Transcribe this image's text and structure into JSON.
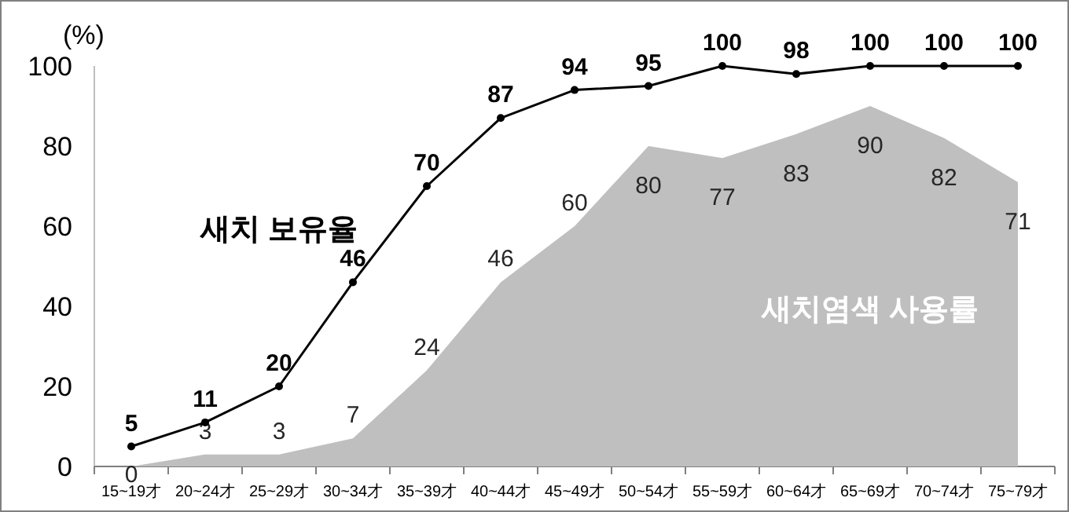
{
  "chart_data": {
    "type": "line",
    "ylabel": "(%)",
    "categories": [
      "15~19才",
      "20~24才",
      "25~29才",
      "30~34才",
      "35~39才",
      "40~44才",
      "45~49才",
      "50~54才",
      "55~59才",
      "60~64才",
      "65~69才",
      "70~74才",
      "75~79才"
    ],
    "series": [
      {
        "name": "새치염색 사용률",
        "type": "area",
        "color": "#bfbfbf",
        "values": [
          0,
          3,
          3,
          7,
          24,
          46,
          60,
          80,
          77,
          83,
          90,
          82,
          71
        ]
      },
      {
        "name": "새치 보유율",
        "color": "#000000",
        "marker": "circle",
        "values": [
          5,
          11,
          20,
          46,
          70,
          87,
          94,
          95,
          100,
          98,
          100,
          100,
          100
        ]
      }
    ],
    "ylim": [
      0,
      100
    ],
    "yticks": [
      0,
      20,
      40,
      60,
      80,
      100
    ],
    "data_labels": true,
    "legend": false,
    "grid": false
  }
}
